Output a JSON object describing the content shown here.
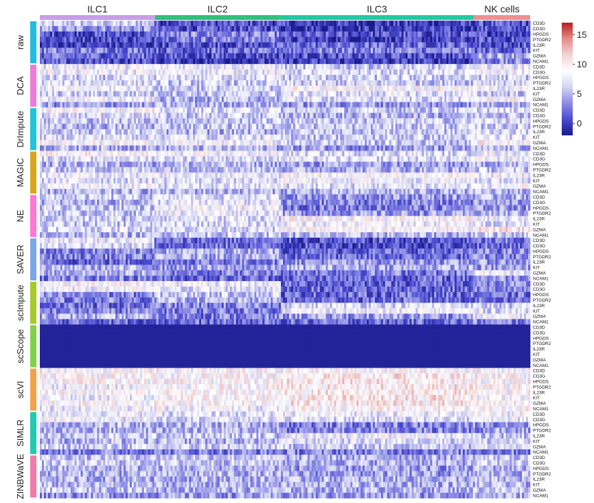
{
  "chart_data": {
    "type": "heatmap",
    "title": "",
    "xlabel": "",
    "ylabel": "",
    "cell_groups": [
      {
        "name": "ILC1",
        "fraction": 0.235,
        "color": "#c89ee6"
      },
      {
        "name": "ILC2",
        "fraction": 0.255,
        "color": "#2fc07a"
      },
      {
        "name": "ILC3",
        "fraction": 0.395,
        "color": "#20c9a4"
      },
      {
        "name": "NK cells",
        "fraction": 0.115,
        "color": "#ef8f8f"
      }
    ],
    "genes": [
      "CD3D",
      "CD3G",
      "HPGDS",
      "PTGDR2",
      "IL23R",
      "KIT",
      "GZMA",
      "NCAM1"
    ],
    "methods": [
      {
        "name": "raw",
        "color": "#20bde0",
        "levels": [
          [
            6,
            1,
            0,
            1
          ],
          [
            4,
            1,
            0,
            1
          ],
          [
            1,
            3,
            1,
            1
          ],
          [
            1,
            3,
            0,
            1
          ],
          [
            0,
            1,
            2,
            1
          ],
          [
            3,
            2,
            3,
            2
          ],
          [
            2,
            1,
            1,
            5
          ],
          [
            1,
            0,
            0,
            3
          ]
        ]
      },
      {
        "name": "DCA",
        "color": "#f07ad8",
        "levels": [
          [
            8,
            8,
            6,
            8
          ],
          [
            8,
            8,
            7,
            8
          ],
          [
            6,
            7,
            6,
            6
          ],
          [
            7,
            6,
            6,
            7
          ],
          [
            8,
            6,
            9,
            8
          ],
          [
            6,
            6,
            7,
            6
          ],
          [
            8,
            5,
            7,
            9
          ],
          [
            4,
            5,
            4,
            5
          ]
        ]
      },
      {
        "name": "DrImpute",
        "color": "#22c4d8",
        "levels": [
          [
            9,
            7,
            6,
            7
          ],
          [
            7,
            6,
            5,
            6
          ],
          [
            6,
            6,
            6,
            7
          ],
          [
            5,
            6,
            6,
            6
          ],
          [
            6,
            5,
            6,
            7
          ],
          [
            7,
            7,
            6,
            7
          ],
          [
            9,
            8,
            6,
            9
          ],
          [
            5,
            5,
            4,
            5
          ]
        ]
      },
      {
        "name": "MAGIC",
        "color": "#d8a51c",
        "levels": [
          [
            9,
            8,
            7,
            8
          ],
          [
            7,
            7,
            7,
            8
          ],
          [
            5,
            5,
            4,
            5
          ],
          [
            6,
            6,
            5,
            6
          ],
          [
            8,
            8,
            9,
            8
          ],
          [
            7,
            7,
            8,
            7
          ],
          [
            8,
            7,
            7,
            8
          ],
          [
            5,
            5,
            5,
            5
          ]
        ]
      },
      {
        "name": "NE",
        "color": "#ff77d4",
        "levels": [
          [
            6,
            7,
            4,
            5
          ],
          [
            5,
            7,
            3,
            4
          ],
          [
            6,
            8,
            3,
            4
          ],
          [
            6,
            8,
            4,
            5
          ],
          [
            6,
            7,
            9,
            8
          ],
          [
            6,
            7,
            8,
            7
          ],
          [
            7,
            7,
            9,
            10
          ],
          [
            5,
            6,
            5,
            6
          ]
        ]
      },
      {
        "name": "SAVER",
        "color": "#7aa8e6",
        "levels": [
          [
            8,
            2,
            1,
            2
          ],
          [
            7,
            2,
            1,
            2
          ],
          [
            3,
            5,
            2,
            3
          ],
          [
            3,
            5,
            2,
            3
          ],
          [
            2,
            3,
            4,
            4
          ],
          [
            5,
            4,
            5,
            4
          ],
          [
            5,
            3,
            3,
            8
          ],
          [
            3,
            2,
            2,
            4
          ]
        ]
      },
      {
        "name": "scImpute",
        "color": "#a8c92c",
        "levels": [
          [
            9,
            8,
            2,
            3
          ],
          [
            8,
            7,
            2,
            3
          ],
          [
            3,
            6,
            2,
            2
          ],
          [
            3,
            5,
            2,
            2
          ],
          [
            2,
            3,
            7,
            6
          ],
          [
            3,
            3,
            8,
            7
          ],
          [
            5,
            3,
            4,
            8
          ],
          [
            2,
            2,
            2,
            3
          ]
        ]
      },
      {
        "name": "scScope",
        "color": "#7fd24a",
        "levels": [
          [
            0,
            0,
            0,
            0
          ],
          [
            0,
            0,
            0,
            0
          ],
          [
            0,
            0,
            0,
            0
          ],
          [
            0,
            0,
            0,
            0
          ],
          [
            0,
            0,
            0,
            0
          ],
          [
            0,
            0,
            0,
            0
          ],
          [
            0,
            0,
            0,
            0
          ],
          [
            0,
            0,
            0,
            0
          ]
        ]
      },
      {
        "name": "scVI",
        "color": "#f2a24a",
        "levels": [
          [
            9,
            9,
            9,
            9
          ],
          [
            9,
            9,
            10,
            9
          ],
          [
            9,
            9,
            10,
            9
          ],
          [
            8,
            9,
            10,
            9
          ],
          [
            9,
            9,
            10,
            9
          ],
          [
            8,
            9,
            10,
            9
          ],
          [
            9,
            9,
            10,
            10
          ],
          [
            8,
            8,
            9,
            9
          ]
        ]
      },
      {
        "name": "SIMLR",
        "color": "#22c9b0",
        "levels": [
          [
            8,
            7,
            8,
            8
          ],
          [
            8,
            7,
            7,
            8
          ],
          [
            5,
            5,
            3,
            4
          ],
          [
            5,
            5,
            3,
            4
          ],
          [
            6,
            6,
            8,
            6
          ],
          [
            5,
            5,
            7,
            6
          ],
          [
            6,
            6,
            6,
            8
          ],
          [
            3,
            3,
            3,
            3
          ]
        ]
      },
      {
        "name": "ZINBWaVE",
        "color": "#f07aaa",
        "levels": [
          [
            6,
            6,
            5,
            6
          ],
          [
            6,
            6,
            5,
            6
          ],
          [
            5,
            5,
            4,
            5
          ],
          [
            5,
            5,
            4,
            5
          ],
          [
            5,
            5,
            5,
            5
          ],
          [
            5,
            5,
            5,
            5
          ],
          [
            6,
            5,
            5,
            6
          ],
          [
            4,
            4,
            4,
            5
          ]
        ]
      }
    ],
    "colorbar": {
      "min": -2,
      "max": 17,
      "ticks": [
        15,
        10,
        5,
        0
      ],
      "colors": [
        "#1a1a8c",
        "#4b4bd0",
        "#8c8ce6",
        "#d4d4f2",
        "#ffffff",
        "#f2d4d4",
        "#e68c8c",
        "#b81c1c"
      ]
    }
  }
}
